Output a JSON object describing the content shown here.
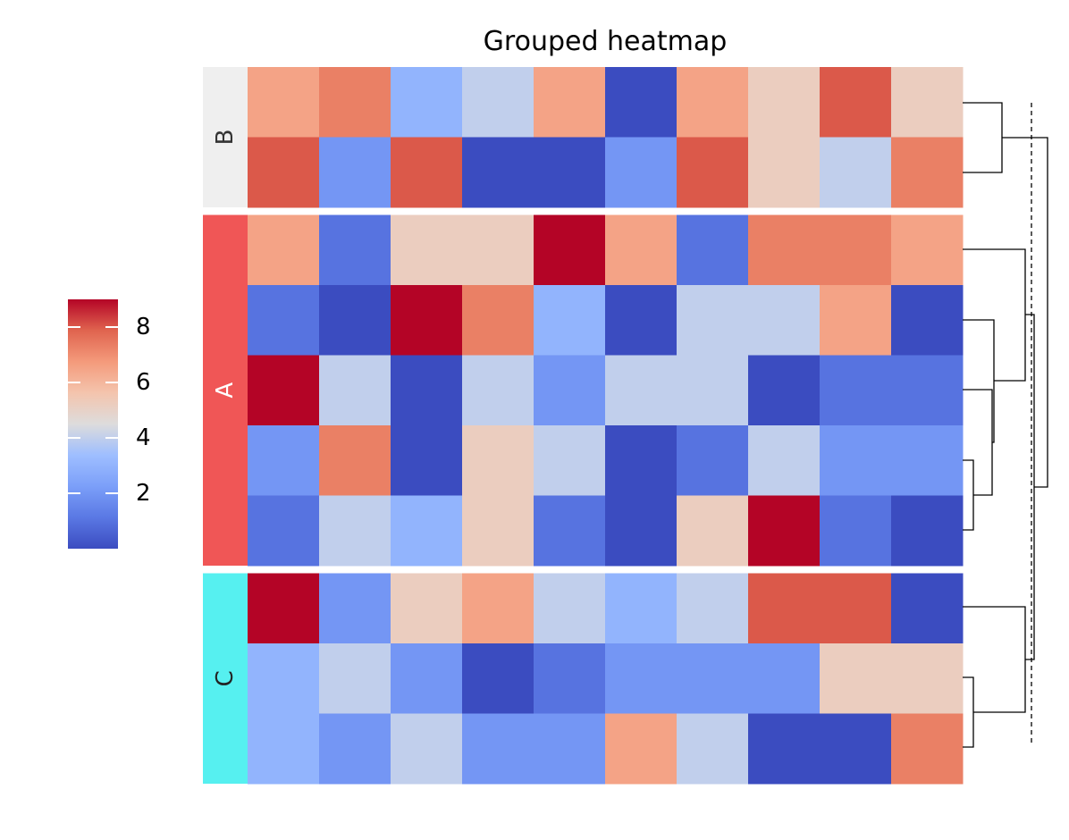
{
  "chart_data": {
    "type": "heatmap",
    "title": "Grouped heatmap",
    "colormap": "coolwarm",
    "value_range": [
      0,
      9
    ],
    "colorbar": {
      "ticks": [
        2,
        4,
        6,
        8
      ],
      "placement": "left"
    },
    "columns": 10,
    "groups": [
      {
        "label": "B",
        "color": "#efefef",
        "label_color": "#333333",
        "rows": [
          [
            6.5,
            7.3,
            3.0,
            4.0,
            6.5,
            0,
            6.5,
            5.2,
            8.0,
            5.2
          ],
          [
            8.0,
            2.0,
            8.0,
            0,
            0,
            2.0,
            8.0,
            5.2,
            4.0,
            7.3
          ]
        ]
      },
      {
        "label": "A",
        "color": "#f05656",
        "label_color": "#ffffff",
        "rows": [
          [
            6.5,
            1.0,
            5.2,
            5.2,
            9.0,
            6.5,
            1.0,
            7.3,
            7.3,
            6.5
          ],
          [
            1.0,
            0,
            9.0,
            7.3,
            3.0,
            0,
            4.0,
            4.0,
            6.5,
            0
          ],
          [
            9.0,
            4.0,
            0,
            4.0,
            2.0,
            4.0,
            4.0,
            0,
            1.0,
            1.0
          ],
          [
            2.0,
            7.3,
            0,
            5.2,
            4.0,
            0,
            1.0,
            4.0,
            2.0,
            2.0
          ],
          [
            1.0,
            4.0,
            3.0,
            5.2,
            1.0,
            0,
            5.2,
            9.0,
            1.0,
            0
          ]
        ]
      },
      {
        "label": "C",
        "color": "#56f0f0",
        "label_color": "#222222",
        "rows": [
          [
            9.0,
            2.0,
            5.2,
            6.5,
            4.0,
            3.0,
            4.0,
            8.0,
            8.0,
            0
          ],
          [
            3.0,
            4.0,
            2.0,
            0,
            1.0,
            2.0,
            2.0,
            2.0,
            5.2,
            5.2
          ],
          [
            3.0,
            2.0,
            4.0,
            2.0,
            2.0,
            6.5,
            4.0,
            0,
            0,
            7.3
          ]
        ]
      }
    ],
    "dendrogram": {
      "placement": "right",
      "cut_line": "dashed"
    }
  }
}
